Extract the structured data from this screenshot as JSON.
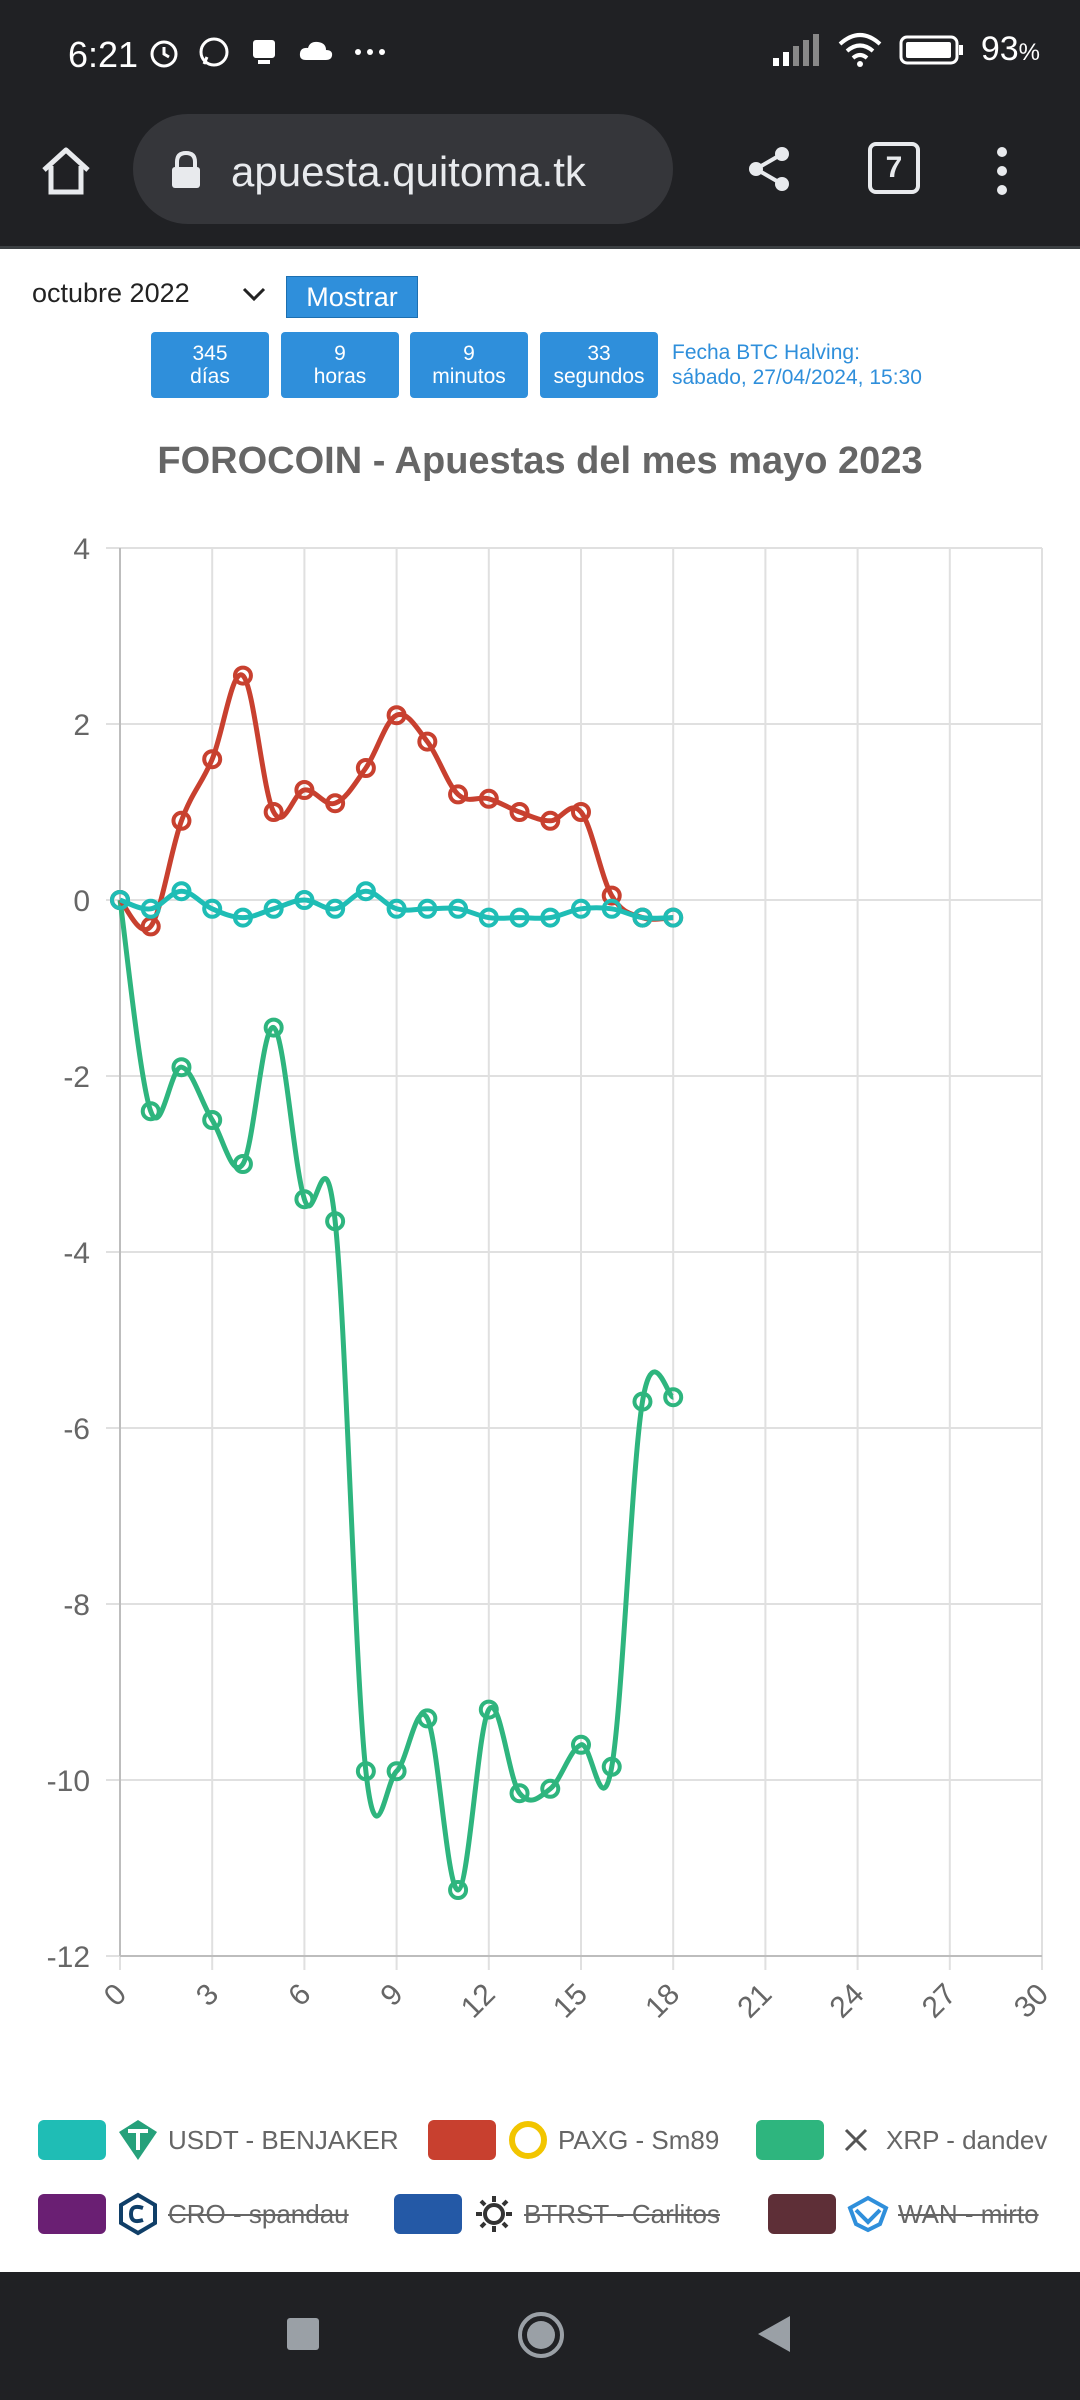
{
  "status": {
    "time": "6:21",
    "battery": "93"
  },
  "browser": {
    "url": "apuesta.quitoma.tk",
    "tab_count": "7"
  },
  "controls": {
    "month": "octubre 2022",
    "show_label": "Mostrar",
    "countdown": {
      "days": "345",
      "days_label": "días",
      "hours": "9",
      "hours_label": "horas",
      "minutes": "9",
      "minutes_label": "minutos",
      "seconds": "33",
      "seconds_label": "segundos"
    },
    "halving_label": "Fecha BTC Halving:",
    "halving_date": "sábado, 27/04/2024, 15:30"
  },
  "chart_title": "FOROCOIN - Apuestas del mes mayo 2023",
  "chart_data": {
    "type": "line",
    "xlim": [
      0,
      30
    ],
    "ylim": [
      -12,
      4
    ],
    "x_ticks": [
      "0",
      "3",
      "6",
      "9",
      "12",
      "15",
      "18",
      "21",
      "24",
      "27",
      "30"
    ],
    "y_ticks": [
      "4",
      "2",
      "0",
      "-2",
      "-4",
      "-6",
      "-8",
      "-10",
      "-12"
    ],
    "grid": true,
    "legend_position": "bottom",
    "series": [
      {
        "name": "USDT - BENJAKER",
        "color": "#1fbdb5",
        "x": [
          0,
          1,
          2,
          3,
          4,
          5,
          6,
          7,
          8,
          9,
          10,
          11,
          12,
          13,
          14,
          15,
          16,
          17,
          18
        ],
        "values": [
          0,
          -0.1,
          0.1,
          -0.1,
          -0.2,
          -0.1,
          0.0,
          -0.1,
          0.1,
          -0.1,
          -0.1,
          -0.1,
          -0.2,
          -0.2,
          -0.2,
          -0.1,
          -0.1,
          -0.2,
          -0.2
        ]
      },
      {
        "name": "PAXG - Sm89",
        "color": "#c8402f",
        "x": [
          0,
          1,
          2,
          3,
          4,
          5,
          6,
          7,
          8,
          9,
          10,
          11,
          12,
          13,
          14,
          15,
          16,
          17,
          18
        ],
        "values": [
          0,
          -0.3,
          0.9,
          1.6,
          2.55,
          1.0,
          1.25,
          1.1,
          1.5,
          2.1,
          1.8,
          1.2,
          1.15,
          1.0,
          0.9,
          1.0,
          0.05,
          -0.2,
          -0.2
        ]
      },
      {
        "name": "XRP - dandev",
        "color": "#2eb57e",
        "x": [
          0,
          1,
          2,
          3,
          4,
          5,
          6,
          7,
          8,
          9,
          10,
          11,
          12,
          13,
          14,
          15,
          16,
          17,
          18
        ],
        "values": [
          0,
          -2.4,
          -1.9,
          -2.5,
          -3.0,
          -1.45,
          -3.4,
          -3.65,
          -9.9,
          -9.9,
          -9.3,
          -11.25,
          -9.2,
          -10.15,
          -10.1,
          -9.6,
          -9.85,
          -5.7,
          -5.65
        ]
      },
      {
        "name": "CRO - spandau",
        "color": "#6a1f73",
        "hidden": true
      },
      {
        "name": "BTRST - Carlitos",
        "color": "#2459a6",
        "hidden": true
      },
      {
        "name": "WAN - mirto",
        "color": "#5e2f37",
        "hidden": true
      }
    ]
  },
  "legend_icons": [
    "tether-icon",
    "paxg-icon",
    "xrp-icon",
    "cro-icon",
    "btrst-icon",
    "wan-icon"
  ]
}
